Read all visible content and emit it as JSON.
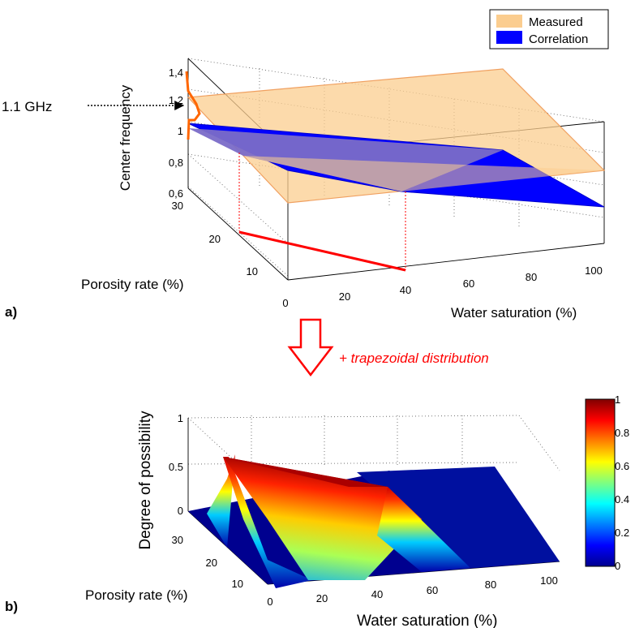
{
  "chart_data": [
    {
      "type": "surface",
      "panel_label": "a)",
      "xlabel": "Water saturation (%)",
      "ylabel": "Porosity rate (%)",
      "zlabel": "Center frequency",
      "x_ticks": [
        "0",
        "20",
        "40",
        "60",
        "80",
        "100"
      ],
      "y_ticks": [
        "10",
        "20",
        "30"
      ],
      "z_ticks": [
        "0,6",
        "0,8",
        "1",
        "1,2",
        "1,4"
      ],
      "legend": [
        "Measured",
        "Correlation"
      ],
      "annotation": "1.1 GHz",
      "colors": {
        "measured": "#fbcd8f",
        "correlation": "#0000ff",
        "highlight": "#ff0000",
        "curve": "#ff6600"
      }
    },
    {
      "type": "surface",
      "panel_label": "b)",
      "xlabel": "Water saturation (%)",
      "ylabel": "Porosity rate (%)",
      "zlabel": "Degree of possibility",
      "x_ticks": [
        "0",
        "20",
        "40",
        "60",
        "80",
        "100"
      ],
      "y_ticks": [
        "10",
        "20",
        "30"
      ],
      "z_ticks": [
        "0",
        "0.5",
        "1"
      ],
      "colorbar_ticks": [
        "0",
        "0.2",
        "0.4",
        "0.6",
        "0.8",
        "1"
      ],
      "colormap": "jet"
    }
  ],
  "transition": {
    "label": "+ trapezoidal distribution"
  }
}
